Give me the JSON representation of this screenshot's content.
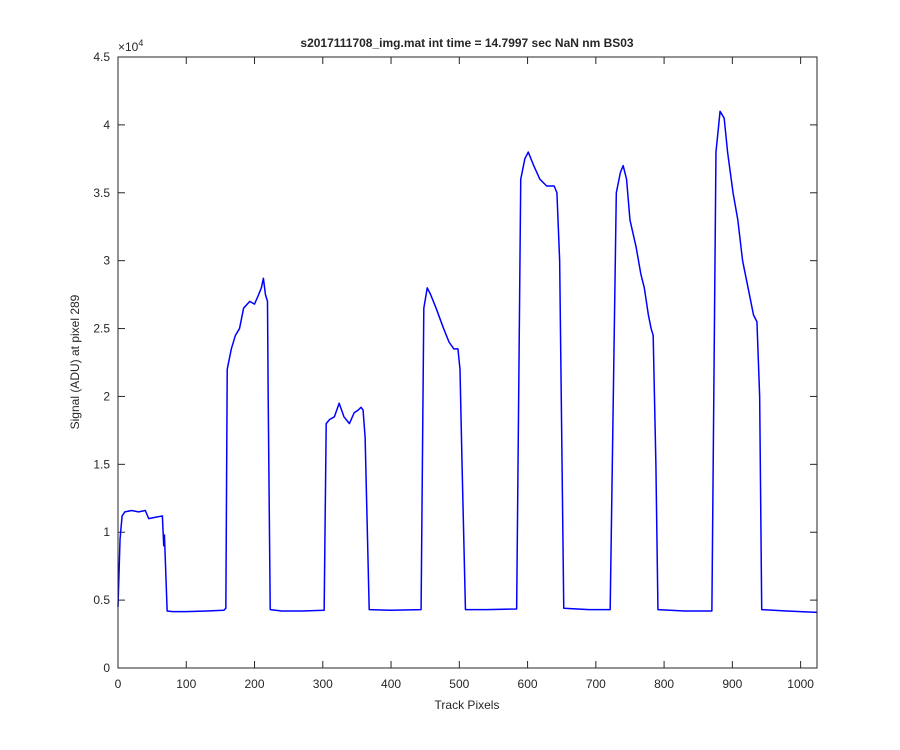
{
  "chart_data": {
    "type": "line",
    "title": "s2017111708_img.mat int time = 14.7997 sec  NaN nm BS03",
    "x_label": "Track Pixels",
    "y_label": "Signal (ADU) at pixel 289",
    "y_multiplier": {
      "base": "×10",
      "exponent": "4"
    },
    "color": "#0000ff",
    "box": true,
    "xlim": [
      0,
      1024
    ],
    "xticks": [
      0,
      100,
      200,
      300,
      400,
      500,
      600,
      700,
      800,
      900,
      1000
    ],
    "ylim": [
      0,
      45000
    ],
    "yticks": [
      0,
      {
        "value": 5000,
        "label": "0.5"
      },
      {
        "value": 10000,
        "label": "1"
      },
      {
        "value": 15000,
        "label": "1.5"
      },
      {
        "value": 20000,
        "label": "2"
      },
      {
        "value": 25000,
        "label": "2.5"
      },
      {
        "value": 30000,
        "label": "3"
      },
      {
        "value": 35000,
        "label": "3.5"
      },
      {
        "value": 40000,
        "label": "4"
      },
      {
        "value": 45000,
        "label": "4.5"
      }
    ],
    "x": [
      0,
      3,
      6,
      10,
      20,
      30,
      40,
      45,
      55,
      65,
      67,
      68,
      70,
      72,
      80,
      100,
      130,
      155,
      158,
      160,
      166,
      172,
      178,
      184,
      193,
      200,
      206,
      210,
      213,
      216,
      219,
      220,
      223,
      240,
      270,
      302,
      305,
      310,
      317,
      324,
      331,
      339,
      346,
      352,
      356,
      359,
      362,
      368,
      400,
      444,
      448,
      453,
      458,
      466,
      477,
      485,
      492,
      498,
      501,
      504,
      509,
      540,
      584,
      590,
      596,
      601,
      609,
      618,
      628,
      639,
      643,
      647,
      653,
      690,
      721,
      730,
      736,
      740,
      745,
      750,
      759,
      766,
      771,
      777,
      781,
      784,
      788,
      791,
      830,
      870,
      876,
      882,
      888,
      893,
      901,
      908,
      915,
      923,
      931,
      936,
      940,
      943,
      980,
      1024
    ],
    "values": [
      4500,
      9500,
      11200,
      11500,
      11600,
      11500,
      11600,
      11000,
      11100,
      11200,
      9000,
      9800,
      7000,
      4200,
      4150,
      4150,
      4200,
      4250,
      4400,
      22000,
      23500,
      24500,
      25000,
      26500,
      27000,
      26800,
      27500,
      28000,
      28700,
      27500,
      27000,
      20000,
      4300,
      4200,
      4200,
      4250,
      18000,
      18300,
      18500,
      19500,
      18500,
      18000,
      18800,
      19000,
      19200,
      19000,
      17000,
      4300,
      4250,
      4300,
      26500,
      28000,
      27500,
      26500,
      25000,
      24000,
      23500,
      23500,
      22000,
      15000,
      4300,
      4300,
      4350,
      36000,
      37500,
      38000,
      37000,
      36000,
      35500,
      35500,
      35000,
      30000,
      4400,
      4300,
      4300,
      35000,
      36500,
      37000,
      36000,
      33000,
      31000,
      29000,
      28000,
      26000,
      25000,
      24500,
      15000,
      4300,
      4200,
      4200,
      38000,
      41000,
      40500,
      38000,
      35000,
      33000,
      30000,
      28000,
      26000,
      25500,
      20000,
      4300,
      4200,
      4100
    ]
  }
}
